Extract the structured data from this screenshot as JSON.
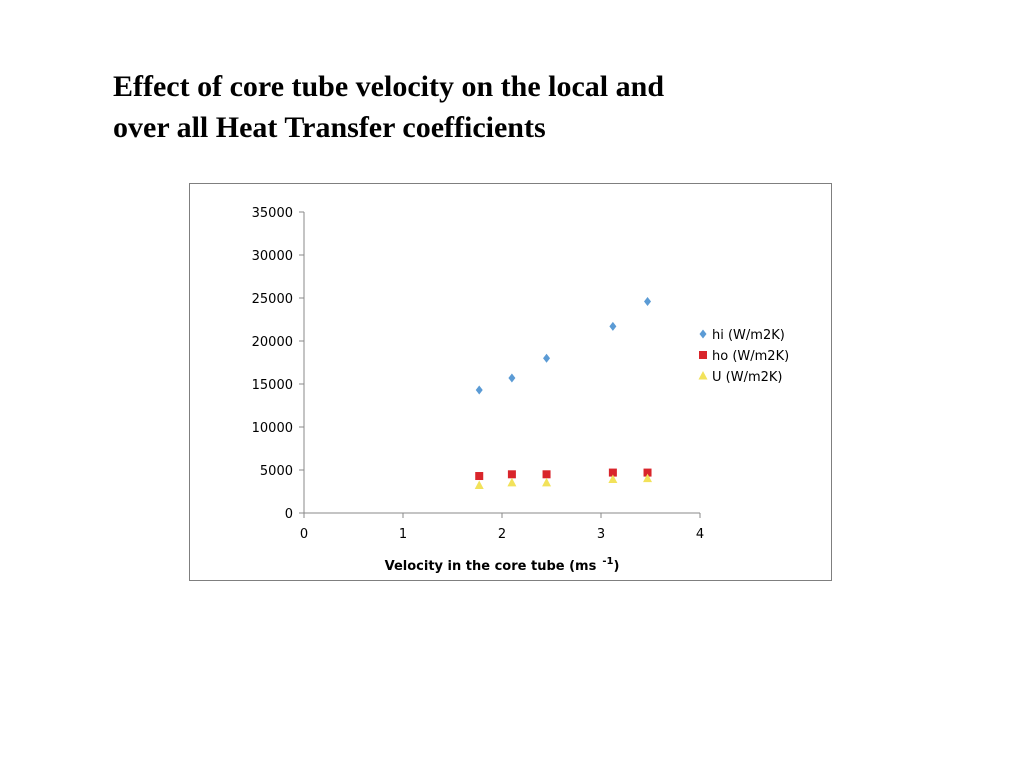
{
  "slide": {
    "title_line1": "Effect of core tube velocity on the local and",
    "title_line2": "over all Heat Transfer coefficients"
  },
  "chart_data": {
    "type": "scatter",
    "title": "",
    "xlabel": "Velocity in the core tube (ms",
    "xlabel_superscript": "-1",
    "xlabel_suffix": ")",
    "ylabel": "",
    "xlim": [
      0,
      4
    ],
    "ylim": [
      0,
      35000
    ],
    "x_ticks": [
      0,
      1,
      2,
      3,
      4
    ],
    "y_ticks": [
      0,
      5000,
      10000,
      15000,
      20000,
      25000,
      30000,
      35000
    ],
    "grid": false,
    "legend_position": "right",
    "series": [
      {
        "name": "hi (W/m2K)",
        "marker": "diamond",
        "color": "#5b9bd5",
        "points": [
          [
            1.77,
            14300
          ],
          [
            2.1,
            15700
          ],
          [
            2.45,
            18000
          ],
          [
            3.12,
            21700
          ],
          [
            3.47,
            24600
          ]
        ]
      },
      {
        "name": "ho (W/m2K)",
        "marker": "square",
        "color": "#d9252b",
        "points": [
          [
            1.77,
            4300
          ],
          [
            2.1,
            4500
          ],
          [
            2.45,
            4500
          ],
          [
            3.12,
            4700
          ],
          [
            3.47,
            4700
          ]
        ]
      },
      {
        "name": "U (W/m2K)",
        "marker": "triangle",
        "color": "#f2e25a",
        "points": [
          [
            1.77,
            3200
          ],
          [
            2.1,
            3500
          ],
          [
            2.45,
            3500
          ],
          [
            3.12,
            3900
          ],
          [
            3.47,
            4000
          ]
        ]
      }
    ]
  }
}
